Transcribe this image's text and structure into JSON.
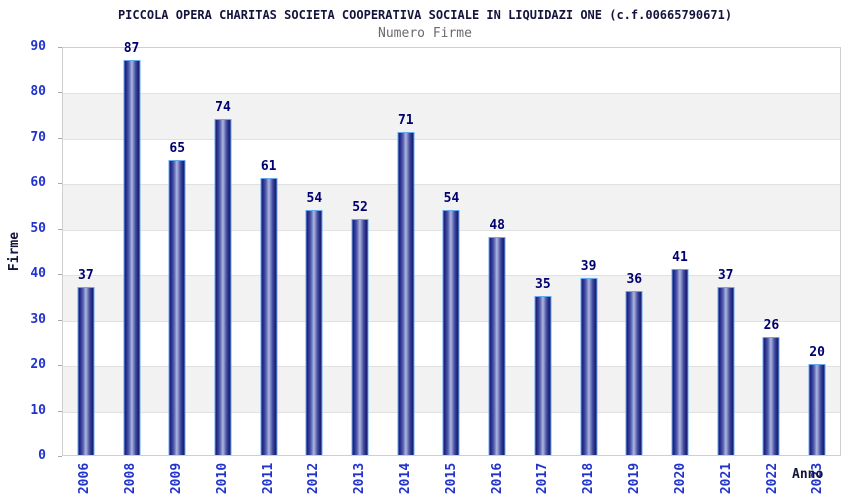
{
  "chart_data": {
    "type": "bar",
    "title": "PICCOLA OPERA CHARITAS SOCIETA COOPERATIVA SOCIALE IN LIQUIDAZI ONE (c.f.00665790671)",
    "subtitle": "Numero Firme",
    "xlabel": "Anno",
    "ylabel": "Firme",
    "categories": [
      "2006",
      "2008",
      "2009",
      "2010",
      "2011",
      "2012",
      "2013",
      "2014",
      "2015",
      "2016",
      "2017",
      "2018",
      "2019",
      "2020",
      "2021",
      "2022",
      "2023"
    ],
    "values": [
      37,
      87,
      65,
      74,
      61,
      54,
      52,
      71,
      54,
      48,
      35,
      39,
      36,
      41,
      37,
      26,
      20
    ],
    "ylim": [
      0,
      90
    ],
    "ytick_step": 10,
    "yticks": [
      0,
      10,
      20,
      30,
      40,
      50,
      60,
      70,
      80,
      90
    ],
    "grid": true,
    "legend_position": "none",
    "band_pattern": "alternating white/gray per 10 units, white at top",
    "colors": {
      "title": "#14143c",
      "subtitle": "#6b6b6b",
      "tick_label": "#2233cc",
      "value_label": "#00006e",
      "axis_title": "#14143c",
      "bar_edge": "#1a1a6e",
      "bar_center": "#aab4de",
      "bar_border": "#64a8f0",
      "band_gray": "#f2f2f2",
      "gridline": "#e1e1e1",
      "plot_border": "#cfcfcf"
    }
  }
}
